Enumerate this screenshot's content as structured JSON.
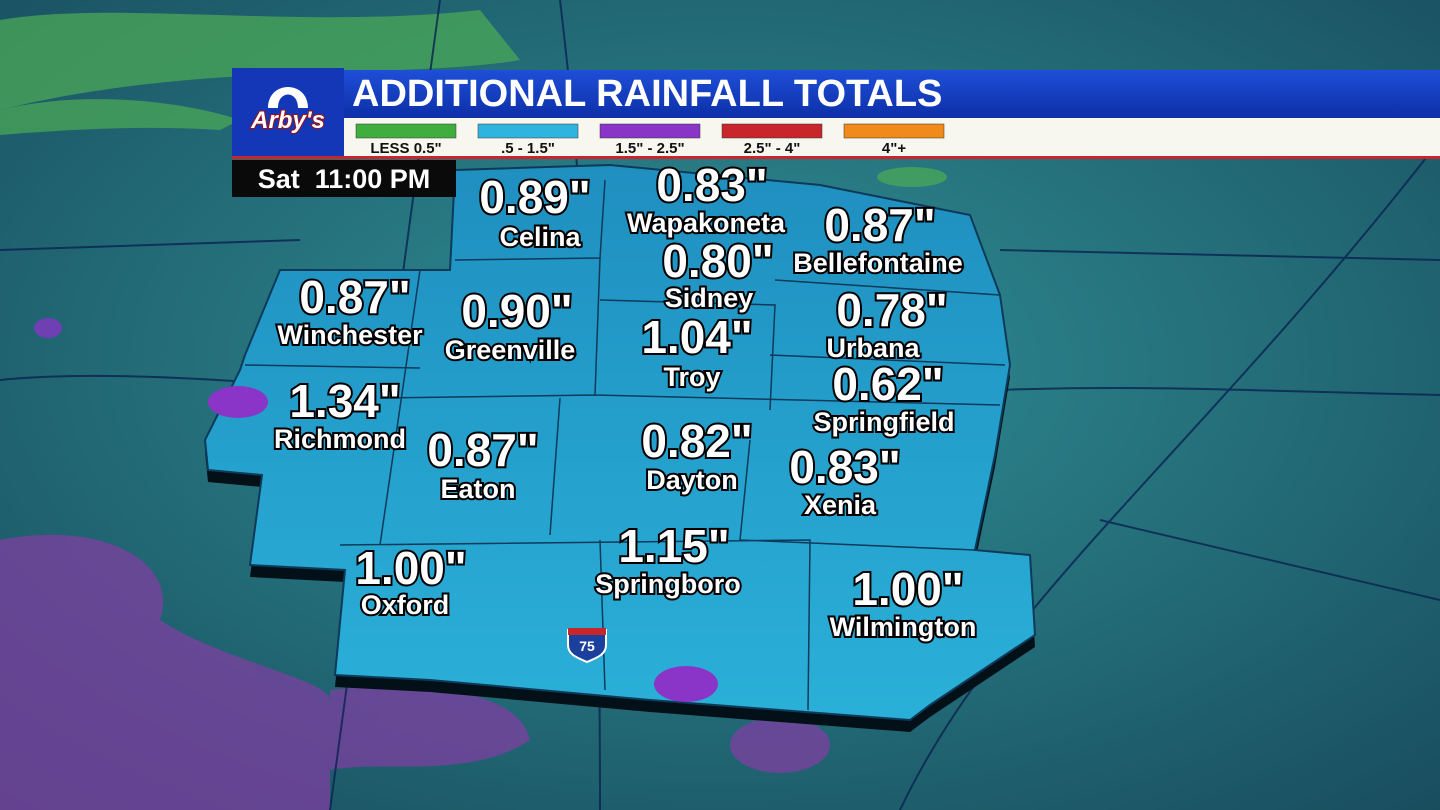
{
  "header": {
    "logo": "Arby's",
    "title": "ADDITIONAL RAINFALL TOTALS",
    "time": "Sat  11:00 PM"
  },
  "legend": [
    {
      "label": "LESS 0.5\"",
      "color": "#3fae3f"
    },
    {
      "label": ".5 - 1.5\"",
      "color": "#2fb4e0"
    },
    {
      "label": "1.5\" - 2.5\"",
      "color": "#8a34c8"
    },
    {
      "label": "2.5\" - 4\"",
      "color": "#c8262a"
    },
    {
      "label": "4\"+",
      "color": "#f08a1a"
    }
  ],
  "interstate": "75",
  "cities": [
    {
      "value": "0.89\"",
      "name": "Celina"
    },
    {
      "value": "0.83\"",
      "name": "Wapakoneta"
    },
    {
      "value": "0.87\"",
      "name": "Bellefontaine"
    },
    {
      "value": "0.80\"",
      "name": "Sidney"
    },
    {
      "value": "0.87\"",
      "name": "Winchester"
    },
    {
      "value": "0.90\"",
      "name": "Greenville"
    },
    {
      "value": "0.78\"",
      "name": "Urbana"
    },
    {
      "value": "1.04\"",
      "name": "Troy"
    },
    {
      "value": "0.62\"",
      "name": "Springfield"
    },
    {
      "value": "1.34\"",
      "name": "Richmond"
    },
    {
      "value": "0.87\"",
      "name": "Eaton"
    },
    {
      "value": "0.82\"",
      "name": "Dayton"
    },
    {
      "value": "0.83\"",
      "name": "Xenia"
    },
    {
      "value": "1.15\"",
      "name": "Springboro"
    },
    {
      "value": "1.00\"",
      "name": "Oxford"
    },
    {
      "value": "1.00\"",
      "name": "Wilmington"
    }
  ]
}
